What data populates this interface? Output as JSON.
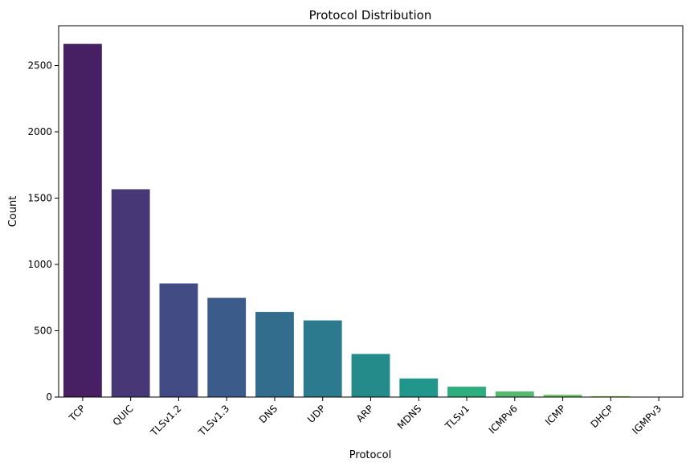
{
  "chart_data": {
    "type": "bar",
    "title": "Protocol Distribution",
    "xlabel": "Protocol",
    "ylabel": "Count",
    "categories": [
      "TCP",
      "QUIC",
      "TLSv1.2",
      "TLSv1.3",
      "DNS",
      "UDP",
      "ARP",
      "MDNS",
      "TLSv1",
      "ICMPv6",
      "ICMP",
      "DHCP",
      "IGMPv3"
    ],
    "values": [
      2663,
      1567,
      857,
      748,
      642,
      578,
      325,
      140,
      78,
      42,
      17,
      7,
      2
    ],
    "ylim": [
      0,
      2800
    ],
    "yticks": [
      0,
      500,
      1000,
      1500,
      2000,
      2500
    ],
    "grid": false,
    "palette": "viridis",
    "colors": [
      "#472063",
      "#473776",
      "#424B84",
      "#3B5C8B",
      "#336D8D",
      "#2C7A8E",
      "#258B8A",
      "#21968A",
      "#2EAD7E",
      "#53BA6F",
      "#68C95A",
      "#8FD248",
      "#BFD92A"
    ]
  }
}
